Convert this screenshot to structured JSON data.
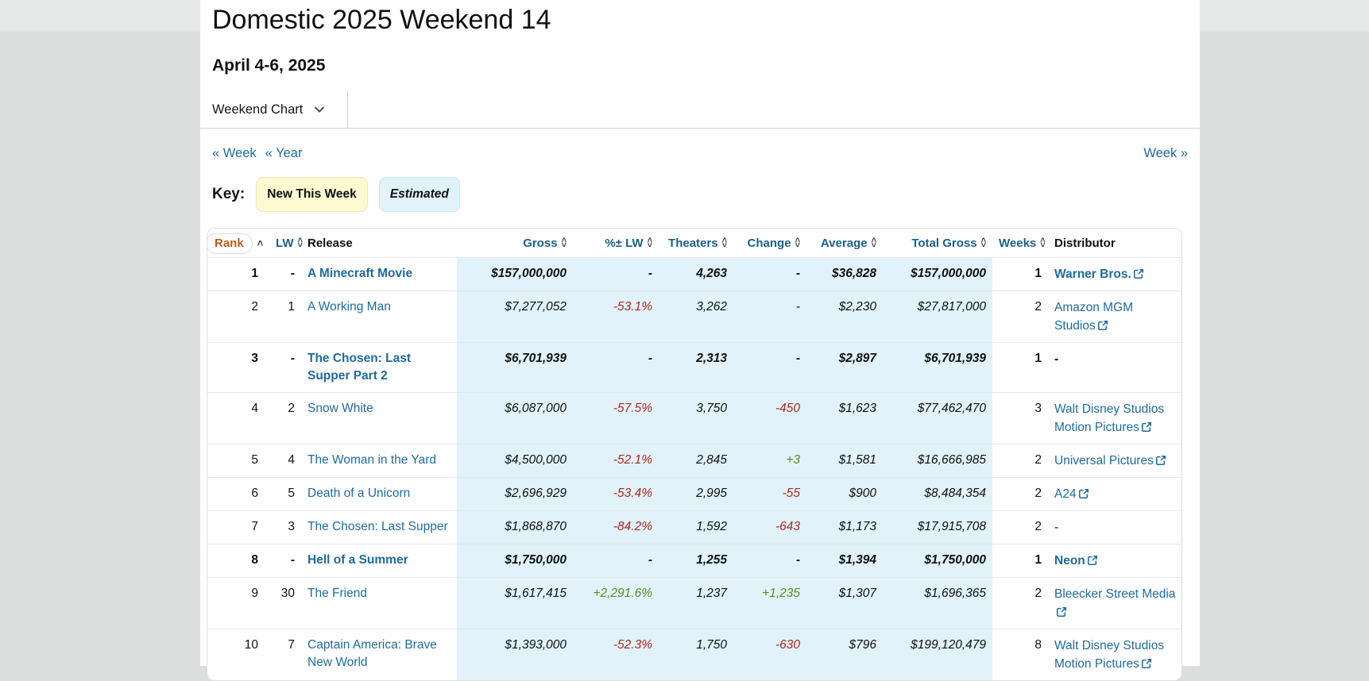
{
  "page": {
    "title": "Domestic 2025 Weekend 14",
    "subtitle": "April 4-6, 2025"
  },
  "chart_selector": {
    "label": "Weekend Chart"
  },
  "nav": {
    "prev_week": "« Week",
    "prev_year": "« Year",
    "next_week": "Week »"
  },
  "key": {
    "label": "Key:",
    "badges": [
      {
        "id": "new-this-week",
        "label": "New This Week",
        "bg": "#fdf9d1"
      },
      {
        "id": "estimated",
        "label": "Estimated",
        "bg": "#e2f2fa"
      }
    ]
  },
  "colors": {
    "link_blue": "#1f6b9c",
    "sorted_column_orange": "#bb5b1d",
    "negative_red": "#ab2a21",
    "positive_green": "#61891f",
    "estimated_cell_blue": "#e1f2fa"
  },
  "table": {
    "columns": [
      {
        "key": "rank",
        "label": "Rank",
        "sortable": true,
        "active_sort": "asc"
      },
      {
        "key": "lw",
        "label": "LW",
        "sortable": true
      },
      {
        "key": "release",
        "label": "Release",
        "sortable": false
      },
      {
        "key": "gross",
        "label": "Gross",
        "sortable": true
      },
      {
        "key": "pct_lw",
        "label": "%± LW",
        "sortable": true
      },
      {
        "key": "theaters",
        "label": "Theaters",
        "sortable": true
      },
      {
        "key": "change",
        "label": "Change",
        "sortable": true
      },
      {
        "key": "average",
        "label": "Average",
        "sortable": true
      },
      {
        "key": "total_gross",
        "label": "Total Gross",
        "sortable": true
      },
      {
        "key": "weeks",
        "label": "Weeks",
        "sortable": true
      },
      {
        "key": "distributor",
        "label": "Distributor",
        "sortable": false
      }
    ],
    "estimated_columns": [
      "gross",
      "pct_lw",
      "theaters",
      "change",
      "average",
      "total_gross"
    ],
    "rows": [
      {
        "rank": "1",
        "lw": "-",
        "release": "A Minecraft Movie",
        "gross": "$157,000,000",
        "pct_lw": "-",
        "theaters": "4,263",
        "change": "-",
        "average": "$36,828",
        "total_gross": "$157,000,000",
        "weeks": "1",
        "distributor": "Warner Bros.",
        "new_this_week": true
      },
      {
        "rank": "2",
        "lw": "1",
        "release": "A Working Man",
        "gross": "$7,277,052",
        "pct_lw": "-53.1%",
        "theaters": "3,262",
        "change": "-",
        "average": "$2,230",
        "total_gross": "$27,817,000",
        "weeks": "2",
        "distributor": "Amazon MGM Studios",
        "new_this_week": false
      },
      {
        "rank": "3",
        "lw": "-",
        "release": "The Chosen: Last Supper Part 2",
        "gross": "$6,701,939",
        "pct_lw": "-",
        "theaters": "2,313",
        "change": "-",
        "average": "$2,897",
        "total_gross": "$6,701,939",
        "weeks": "1",
        "distributor": "-",
        "new_this_week": true
      },
      {
        "rank": "4",
        "lw": "2",
        "release": "Snow White",
        "gross": "$6,087,000",
        "pct_lw": "-57.5%",
        "theaters": "3,750",
        "change": "-450",
        "average": "$1,623",
        "total_gross": "$77,462,470",
        "weeks": "3",
        "distributor": "Walt Disney Studios Motion Pictures",
        "new_this_week": false
      },
      {
        "rank": "5",
        "lw": "4",
        "release": "The Woman in the Yard",
        "gross": "$4,500,000",
        "pct_lw": "-52.1%",
        "theaters": "2,845",
        "change": "+3",
        "average": "$1,581",
        "total_gross": "$16,666,985",
        "weeks": "2",
        "distributor": "Universal Pictures",
        "new_this_week": false
      },
      {
        "rank": "6",
        "lw": "5",
        "release": "Death of a Unicorn",
        "gross": "$2,696,929",
        "pct_lw": "-53.4%",
        "theaters": "2,995",
        "change": "-55",
        "average": "$900",
        "total_gross": "$8,484,354",
        "weeks": "2",
        "distributor": "A24",
        "new_this_week": false
      },
      {
        "rank": "7",
        "lw": "3",
        "release": "The Chosen: Last Supper",
        "gross": "$1,868,870",
        "pct_lw": "-84.2%",
        "theaters": "1,592",
        "change": "-643",
        "average": "$1,173",
        "total_gross": "$17,915,708",
        "weeks": "2",
        "distributor": "-",
        "new_this_week": false
      },
      {
        "rank": "8",
        "lw": "-",
        "release": "Hell of a Summer",
        "gross": "$1,750,000",
        "pct_lw": "-",
        "theaters": "1,255",
        "change": "-",
        "average": "$1,394",
        "total_gross": "$1,750,000",
        "weeks": "1",
        "distributor": "Neon",
        "new_this_week": true
      },
      {
        "rank": "9",
        "lw": "30",
        "release": "The Friend",
        "gross": "$1,617,415",
        "pct_lw": "+2,291.6%",
        "theaters": "1,237",
        "change": "+1,235",
        "average": "$1,307",
        "total_gross": "$1,696,365",
        "weeks": "2",
        "distributor": "Bleecker Street Media",
        "new_this_week": false
      },
      {
        "rank": "10",
        "lw": "7",
        "release": "Captain America: Brave New World",
        "gross": "$1,393,000",
        "pct_lw": "-52.3%",
        "theaters": "1,750",
        "change": "-630",
        "average": "$796",
        "total_gross": "$199,120,479",
        "weeks": "8",
        "distributor": "Walt Disney Studios Motion Pictures",
        "new_this_week": false
      }
    ]
  }
}
